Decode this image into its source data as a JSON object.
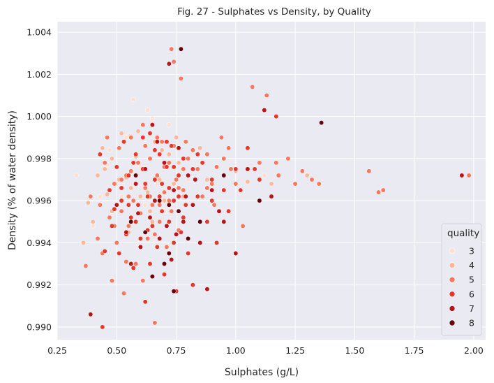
{
  "chart_data": {
    "type": "scatter",
    "title": "Fig. 27 - Sulphates vs Density, by Quality",
    "xlabel": "Sulphates (g/L)",
    "ylabel": "Density (% of water density)",
    "xlim": [
      0.25,
      2.05
    ],
    "ylim": [
      0.9894,
      1.0045
    ],
    "xticks": [
      "0.25",
      "0.50",
      "0.75",
      "1.00",
      "1.25",
      "1.50",
      "1.75",
      "2.00"
    ],
    "yticks": [
      "0.990",
      "0.992",
      "0.994",
      "0.996",
      "0.998",
      "1.000",
      "1.002",
      "1.004"
    ],
    "grid": true,
    "background": "#eaeaf2",
    "legend": {
      "title": "quality",
      "position": "lower-right",
      "entries": [
        {
          "label": "3",
          "color": "#fde0d2"
        },
        {
          "label": "4",
          "color": "#fcb89a"
        },
        {
          "label": "5",
          "color": "#f7785e"
        },
        {
          "label": "6",
          "color": "#e5372c"
        },
        {
          "label": "7",
          "color": "#b91419"
        },
        {
          "label": "8",
          "color": "#67000d"
        }
      ]
    },
    "series": [
      {
        "name": "3",
        "color": "#fde0d2",
        "points": [
          [
            0.33,
            0.9972
          ],
          [
            0.4,
            0.9948
          ],
          [
            0.47,
            0.9984
          ],
          [
            0.5,
            0.9968
          ],
          [
            0.52,
            0.9962
          ],
          [
            0.55,
            0.9991
          ],
          [
            0.57,
            1.0008
          ],
          [
            0.6,
            0.9976
          ],
          [
            0.62,
            0.9958
          ],
          [
            0.65,
            0.9999
          ],
          [
            0.67,
            0.9968
          ],
          [
            0.7,
            0.9955
          ],
          [
            0.72,
            0.9996
          ],
          [
            0.8,
            0.997
          ],
          [
            0.46,
            0.9977
          ],
          [
            0.58,
            0.995
          ],
          [
            1.12,
            0.9972
          ],
          [
            0.43,
            0.9962
          ],
          [
            0.54,
            0.999
          ],
          [
            0.63,
            1.0003
          ]
        ]
      },
      {
        "name": "4",
        "color": "#fcb89a",
        "points": [
          [
            0.36,
            0.994
          ],
          [
            0.38,
            0.9959
          ],
          [
            0.4,
            0.995
          ],
          [
            0.42,
            0.9972
          ],
          [
            0.44,
            0.9985
          ],
          [
            0.46,
            0.9963
          ],
          [
            0.48,
            0.998
          ],
          [
            0.5,
            0.9958
          ],
          [
            0.52,
            0.9992
          ],
          [
            0.54,
            0.9971
          ],
          [
            0.56,
            0.9966
          ],
          [
            0.58,
            0.9981
          ],
          [
            0.6,
            0.9962
          ],
          [
            0.62,
            0.9975
          ],
          [
            0.64,
            0.9955
          ],
          [
            0.66,
            0.9988
          ],
          [
            0.68,
            0.997
          ],
          [
            0.7,
            0.996
          ],
          [
            0.72,
            0.9982
          ],
          [
            0.74,
            0.9968
          ],
          [
            0.76,
            0.9978
          ],
          [
            0.78,
            0.9962
          ],
          [
            0.82,
            0.9975
          ],
          [
            0.88,
            0.997
          ],
          [
            0.95,
            0.998
          ],
          [
            1.0,
            0.9974
          ],
          [
            1.05,
            0.9969
          ],
          [
            1.15,
            0.9968
          ],
          [
            1.3,
            0.9972
          ],
          [
            0.85,
            0.9985
          ],
          [
            0.48,
            0.9955
          ],
          [
            0.55,
            0.9945
          ],
          [
            0.65,
            0.995
          ],
          [
            0.75,
            0.999
          ],
          [
            0.45,
            0.9975
          ],
          [
            0.63,
            0.9964
          ],
          [
            0.57,
            0.9978
          ],
          [
            0.51,
            0.997
          ],
          [
            0.69,
            0.9984
          ],
          [
            0.59,
            0.9993
          ]
        ]
      },
      {
        "name": "5",
        "color": "#f7785e",
        "points": [
          [
            0.37,
            0.9929
          ],
          [
            0.39,
            0.9962
          ],
          [
            0.42,
            0.9942
          ],
          [
            0.44,
            0.9935
          ],
          [
            0.45,
            0.9978
          ],
          [
            0.47,
            0.9952
          ],
          [
            0.48,
            0.9922
          ],
          [
            0.49,
            0.9968
          ],
          [
            0.5,
            0.994
          ],
          [
            0.51,
            0.9985
          ],
          [
            0.52,
            0.9955
          ],
          [
            0.53,
            0.9916
          ],
          [
            0.54,
            0.9972
          ],
          [
            0.55,
            0.9948
          ],
          [
            0.56,
            0.999
          ],
          [
            0.57,
            0.996
          ],
          [
            0.58,
            0.993
          ],
          [
            0.59,
            0.9978
          ],
          [
            0.6,
            0.9954
          ],
          [
            0.61,
            0.9996
          ],
          [
            0.62,
            0.9966
          ],
          [
            0.63,
            0.9942
          ],
          [
            0.64,
            0.998
          ],
          [
            0.65,
            0.9958
          ],
          [
            0.66,
            0.9902
          ],
          [
            0.67,
            0.9972
          ],
          [
            0.68,
            0.995
          ],
          [
            0.69,
            0.9988
          ],
          [
            0.7,
            0.9964
          ],
          [
            0.71,
            0.9938
          ],
          [
            0.72,
            0.9978
          ],
          [
            0.73,
            0.9955
          ],
          [
            0.74,
            1.0026
          ],
          [
            0.75,
            0.997
          ],
          [
            0.76,
            0.9946
          ],
          [
            0.77,
            1.0018
          ],
          [
            0.78,
            0.9965
          ],
          [
            0.8,
            0.998
          ],
          [
            0.82,
            0.9958
          ],
          [
            0.84,
            0.9975
          ],
          [
            0.86,
            0.9962
          ],
          [
            0.88,
            0.9982
          ],
          [
            0.9,
            0.9968
          ],
          [
            0.92,
            0.9976
          ],
          [
            0.95,
            0.998
          ],
          [
            0.98,
            0.9975
          ],
          [
            1.0,
            0.9968
          ],
          [
            1.03,
            0.9948
          ],
          [
            1.07,
            1.0014
          ],
          [
            1.1,
            0.9978
          ],
          [
            1.13,
            1.001
          ],
          [
            1.17,
            0.9978
          ],
          [
            1.18,
            0.9972
          ],
          [
            1.22,
            0.998
          ],
          [
            1.25,
            0.9968
          ],
          [
            1.28,
            0.9974
          ],
          [
            1.32,
            0.997
          ],
          [
            1.35,
            0.9968
          ],
          [
            1.56,
            0.9974
          ],
          [
            1.6,
            0.9964
          ],
          [
            1.62,
            0.9965
          ],
          [
            1.98,
            0.9972
          ],
          [
            0.43,
            0.9958
          ],
          [
            0.46,
            0.999
          ],
          [
            0.54,
            0.9931
          ],
          [
            0.61,
            0.9922
          ],
          [
            0.67,
            0.999
          ],
          [
            0.73,
            1.0032
          ],
          [
            0.79,
            0.9988
          ],
          [
            0.85,
            0.995
          ],
          [
            0.91,
            0.9958
          ],
          [
            0.97,
            0.9985
          ],
          [
            0.52,
            0.997
          ],
          [
            0.58,
            0.9982
          ],
          [
            0.64,
            0.9962
          ],
          [
            0.7,
            0.9976
          ],
          [
            0.76,
            0.9966
          ],
          [
            0.82,
            0.9984
          ],
          [
            0.49,
            0.9948
          ],
          [
            0.55,
            0.9962
          ],
          [
            0.66,
            0.9944
          ],
          [
            0.72,
            0.996
          ],
          [
            0.78,
            0.9975
          ],
          [
            0.88,
            0.9966
          ],
          [
            0.94,
            0.999
          ],
          [
            1.05,
            0.9975
          ],
          [
            0.56,
            0.9974
          ],
          [
            0.62,
            0.9986
          ],
          [
            0.68,
            0.9958
          ],
          [
            0.74,
            0.9986
          ]
        ]
      },
      {
        "name": "6",
        "color": "#e5372c",
        "points": [
          [
            0.43,
            0.9982
          ],
          [
            0.45,
            0.9936
          ],
          [
            0.47,
            0.9965
          ],
          [
            0.48,
            0.9948
          ],
          [
            0.5,
            0.9976
          ],
          [
            0.51,
            0.9935
          ],
          [
            0.52,
            0.996
          ],
          [
            0.53,
            0.9988
          ],
          [
            0.54,
            0.9944
          ],
          [
            0.55,
            0.9972
          ],
          [
            0.56,
            0.9952
          ],
          [
            0.57,
            0.9928
          ],
          [
            0.58,
            0.9982
          ],
          [
            0.59,
            0.9958
          ],
          [
            0.6,
            0.9942
          ],
          [
            0.61,
            0.9975
          ],
          [
            0.62,
            0.9912
          ],
          [
            0.63,
            0.9962
          ],
          [
            0.64,
            0.9992
          ],
          [
            0.65,
            0.9948
          ],
          [
            0.66,
            0.997
          ],
          [
            0.67,
            0.9938
          ],
          [
            0.68,
            0.9982
          ],
          [
            0.69,
            0.9955
          ],
          [
            0.7,
            0.9925
          ],
          [
            0.71,
            0.9976
          ],
          [
            0.72,
            0.995
          ],
          [
            0.73,
            0.9986
          ],
          [
            0.74,
            0.996
          ],
          [
            0.75,
            0.9917
          ],
          [
            0.76,
            0.9972
          ],
          [
            0.77,
            0.9945
          ],
          [
            0.78,
            0.998
          ],
          [
            0.79,
            0.9958
          ],
          [
            0.8,
            0.9935
          ],
          [
            0.82,
            0.9975
          ],
          [
            0.84,
            0.9962
          ],
          [
            0.86,
            0.9978
          ],
          [
            0.88,
            0.995
          ],
          [
            0.9,
            0.997
          ],
          [
            0.92,
            0.994
          ],
          [
            0.95,
            0.9965
          ],
          [
            0.97,
            0.9955
          ],
          [
            1.0,
            0.9975
          ],
          [
            1.02,
            0.9965
          ],
          [
            1.05,
            0.9985
          ],
          [
            1.08,
            0.9975
          ],
          [
            1.1,
            0.997
          ],
          [
            1.17,
            1.0
          ],
          [
            0.44,
            0.99
          ],
          [
            0.64,
            0.993
          ],
          [
            0.82,
            0.992
          ],
          [
            0.61,
            0.999
          ],
          [
            0.69,
            0.9968
          ],
          [
            0.74,
            0.994
          ],
          [
            0.58,
            0.995
          ],
          [
            0.66,
            0.9984
          ],
          [
            0.72,
            0.9966
          ],
          [
            0.78,
            0.9952
          ],
          [
            0.52,
            0.9966
          ],
          [
            0.55,
            0.9958
          ],
          [
            0.63,
            0.9946
          ],
          [
            0.71,
            0.9988
          ],
          [
            0.76,
            0.9962
          ],
          [
            0.84,
            0.9982
          ],
          [
            0.9,
            0.996
          ],
          [
            0.49,
            0.9956
          ],
          [
            0.57,
            0.9978
          ],
          [
            0.62,
            0.9968
          ],
          [
            0.68,
            0.9962
          ],
          [
            0.74,
            0.9976
          ]
        ]
      },
      {
        "name": "7",
        "color": "#b91419",
        "points": [
          [
            0.39,
            0.9906
          ],
          [
            0.5,
            0.9958
          ],
          [
            0.54,
            0.9945
          ],
          [
            0.58,
            0.9968
          ],
          [
            0.6,
            0.9938
          ],
          [
            0.62,
            0.9975
          ],
          [
            0.64,
            0.9952
          ],
          [
            0.65,
            0.9996
          ],
          [
            0.66,
            0.996
          ],
          [
            0.68,
            0.9942
          ],
          [
            0.7,
            0.9978
          ],
          [
            0.72,
            1.0025
          ],
          [
            0.73,
            0.9932
          ],
          [
            0.74,
            0.9965
          ],
          [
            0.76,
            0.9985
          ],
          [
            0.78,
            0.995
          ],
          [
            0.8,
            0.9972
          ],
          [
            0.82,
            0.9958
          ],
          [
            0.85,
            0.994
          ],
          [
            0.88,
            0.9918
          ],
          [
            0.9,
            0.9965
          ],
          [
            0.93,
            0.9955
          ],
          [
            0.95,
            0.995
          ],
          [
            1.0,
            0.9935
          ],
          [
            1.05,
            0.9975
          ],
          [
            1.12,
            1.0003
          ],
          [
            1.15,
            0.9962
          ],
          [
            1.95,
            0.9972
          ],
          [
            0.56,
            0.993
          ],
          [
            0.67,
            0.9988
          ],
          [
            0.71,
            0.9948
          ],
          [
            0.79,
            0.9962
          ],
          [
            0.83,
            0.997
          ],
          [
            0.59,
            0.9954
          ],
          [
            0.75,
            0.9944
          ]
        ]
      },
      {
        "name": "8",
        "color": "#67000d",
        "points": [
          [
            0.56,
            0.995
          ],
          [
            0.62,
            0.9945
          ],
          [
            0.65,
            0.9924
          ],
          [
            0.68,
            0.996
          ],
          [
            0.7,
            0.993
          ],
          [
            0.72,
            0.9958
          ],
          [
            0.74,
            0.9917
          ],
          [
            0.76,
            0.9955
          ],
          [
            0.77,
            1.0032
          ],
          [
            0.8,
            0.9942
          ],
          [
            0.85,
            0.995
          ],
          [
            0.95,
            0.9972
          ],
          [
            1.1,
            0.996
          ],
          [
            1.36,
            0.9997
          ],
          [
            0.58,
            0.9972
          ],
          [
            0.72,
            0.9935
          ]
        ]
      }
    ]
  }
}
